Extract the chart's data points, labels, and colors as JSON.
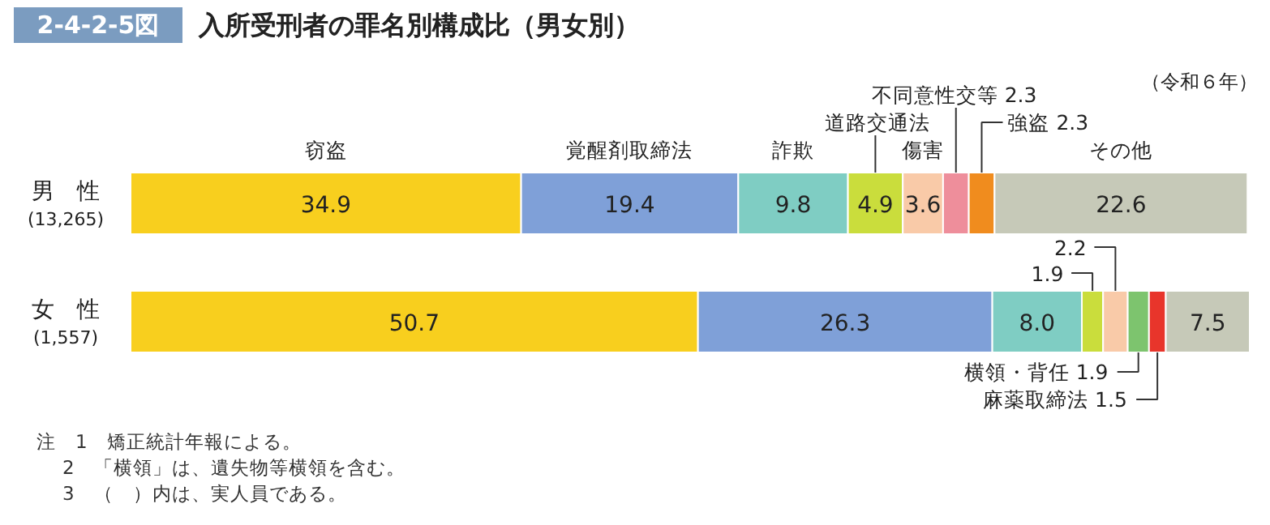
{
  "chart_data": {
    "type": "bar",
    "orientation": "horizontal",
    "stacked": true,
    "title": "2-4-2-5図 入所受刑者の罪名別構成比（男女別）",
    "subtitle": "（令和６年）",
    "categories": [
      "男　性\n(13,265)",
      "女　性\n(1,557)"
    ],
    "series": [
      {
        "name": "窃盗",
        "color": "#f8cf1e",
        "values": [
          34.9,
          50.7
        ],
        "value_labels": [
          "34.9",
          "50.7"
        ]
      },
      {
        "name": "覚醒剤取締法",
        "color": "#7fa0d8",
        "values": [
          19.4,
          26.3
        ],
        "value_labels": [
          "19.4",
          "26.3"
        ]
      },
      {
        "name": "詐欺",
        "color": "#7fcdc3",
        "values": [
          9.8,
          8.0
        ],
        "value_labels": [
          "9.8",
          "8.0"
        ]
      },
      {
        "name": "道路交通法",
        "color": "#cadd3c",
        "values": [
          4.9,
          1.9
        ],
        "value_labels": [
          "4.9",
          "1.9"
        ]
      },
      {
        "name": "傷害",
        "color": "#f9caa8",
        "values": [
          3.6,
          2.2
        ],
        "value_labels": [
          "3.6",
          "2.2"
        ]
      },
      {
        "name": "不同意性交等",
        "color": "#ee8e9b",
        "values": [
          2.3,
          null
        ],
        "value_labels": [
          "2.3",
          null
        ]
      },
      {
        "name": "強盗",
        "color": "#f08c1e",
        "values": [
          2.3,
          null
        ],
        "value_labels": [
          "2.3",
          null
        ]
      },
      {
        "name": "横領・背任",
        "color": "#7dc46e",
        "values": [
          null,
          1.9
        ],
        "value_labels": [
          null,
          "1.9"
        ]
      },
      {
        "name": "麻薬取締法",
        "color": "#e8352b",
        "values": [
          null,
          1.5
        ],
        "value_labels": [
          null,
          "1.5"
        ]
      },
      {
        "name": "その他",
        "color": "#c6c9b8",
        "values": [
          22.6,
          7.5
        ],
        "value_labels": [
          "22.6",
          "7.5"
        ]
      }
    ],
    "annotations": [
      "注　1　矯正統計年報による。",
      "2　「横領」は、遺失物等横領を含む。",
      "3　（　）内は、実人員である。"
    ]
  }
}
